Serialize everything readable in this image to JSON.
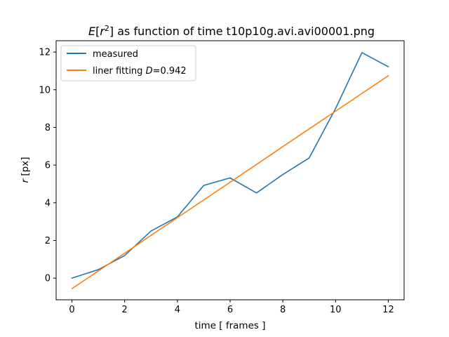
{
  "chart_data": {
    "type": "line",
    "title_prefix": "E",
    "title_open": "[",
    "title_var": "r",
    "title_exp": "2",
    "title_rest": "] as function of time t10p10g.avi.avi00001.png",
    "xlabel": "time [ frames ]",
    "ylabel_var": "r",
    "ylabel_unit": " [px]",
    "xlim": [
      -0.6,
      12.6
    ],
    "ylim": [
      -1.15,
      12.6
    ],
    "xticks": [
      0,
      2,
      4,
      6,
      8,
      10,
      12
    ],
    "yticks": [
      0,
      2,
      4,
      6,
      8,
      10,
      12
    ],
    "grid": false,
    "legend_position": "upper-left",
    "x": [
      0,
      1,
      2,
      3,
      4,
      5,
      6,
      7,
      8,
      9,
      10,
      11,
      12
    ],
    "series": [
      {
        "name": "measured",
        "color": "#1f77b4",
        "values": [
          0.0,
          0.45,
          1.2,
          2.5,
          3.25,
          4.92,
          5.32,
          4.52,
          5.5,
          6.38,
          9.0,
          11.97,
          11.22
        ]
      },
      {
        "name_prefix": "liner fitting ",
        "name_var": "D",
        "name_value": "=0.942",
        "color": "#ff7f0e",
        "values": [
          -0.56,
          0.38,
          1.32,
          2.27,
          3.21,
          4.15,
          5.09,
          6.03,
          6.98,
          7.92,
          8.86,
          9.8,
          10.74
        ]
      }
    ]
  }
}
